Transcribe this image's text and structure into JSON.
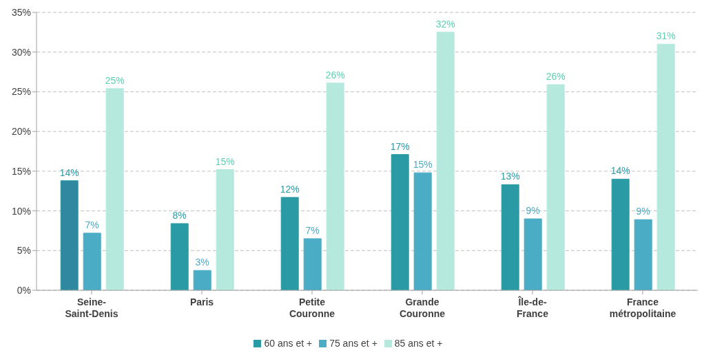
{
  "chart_data": {
    "type": "bar",
    "categories": [
      "Seine-Saint-Denis",
      "Paris",
      "Petite Couronne",
      "Grande Couronne",
      "Île-de-France",
      "France métropolitaine"
    ],
    "series": [
      {
        "name": "60 ans et +",
        "color": "#2a9ba5",
        "colors": [
          "#2f87a0",
          "#2a9ba5",
          "#2a9ba5",
          "#2a9ba5",
          "#2a9ba5",
          "#2a9ba5"
        ],
        "values": [
          13.8,
          8.4,
          11.7,
          17.1,
          13.3,
          14.0
        ],
        "value_labels": [
          "14%",
          "8%",
          "12%",
          "17%",
          "13%",
          "14%"
        ]
      },
      {
        "name": "75 ans et +",
        "color": "#4bacc6",
        "values": [
          7.2,
          2.5,
          6.5,
          14.8,
          9.0,
          8.9
        ],
        "value_labels": [
          "7%",
          "3%",
          "7%",
          "15%",
          "9%",
          "9%"
        ]
      },
      {
        "name": "85 ans et +",
        "color": "#b5e9dd",
        "values": [
          25.4,
          15.2,
          26.1,
          32.5,
          25.9,
          31.0
        ],
        "value_labels": [
          "25%",
          "15%",
          "26%",
          "32%",
          "26%",
          "31%"
        ]
      }
    ],
    "ylim": [
      0,
      35
    ],
    "yticks": [
      {
        "value": 0,
        "label": "0%"
      },
      {
        "value": 5,
        "label": "5%"
      },
      {
        "value": 10,
        "label": "10%"
      },
      {
        "value": 15,
        "label": "15%"
      },
      {
        "value": 20,
        "label": "20%"
      },
      {
        "value": 25,
        "label": "25%"
      },
      {
        "value": 30,
        "label": "30%"
      },
      {
        "value": 35,
        "label": "35%"
      }
    ],
    "grid": "y",
    "legend": "bottom"
  }
}
